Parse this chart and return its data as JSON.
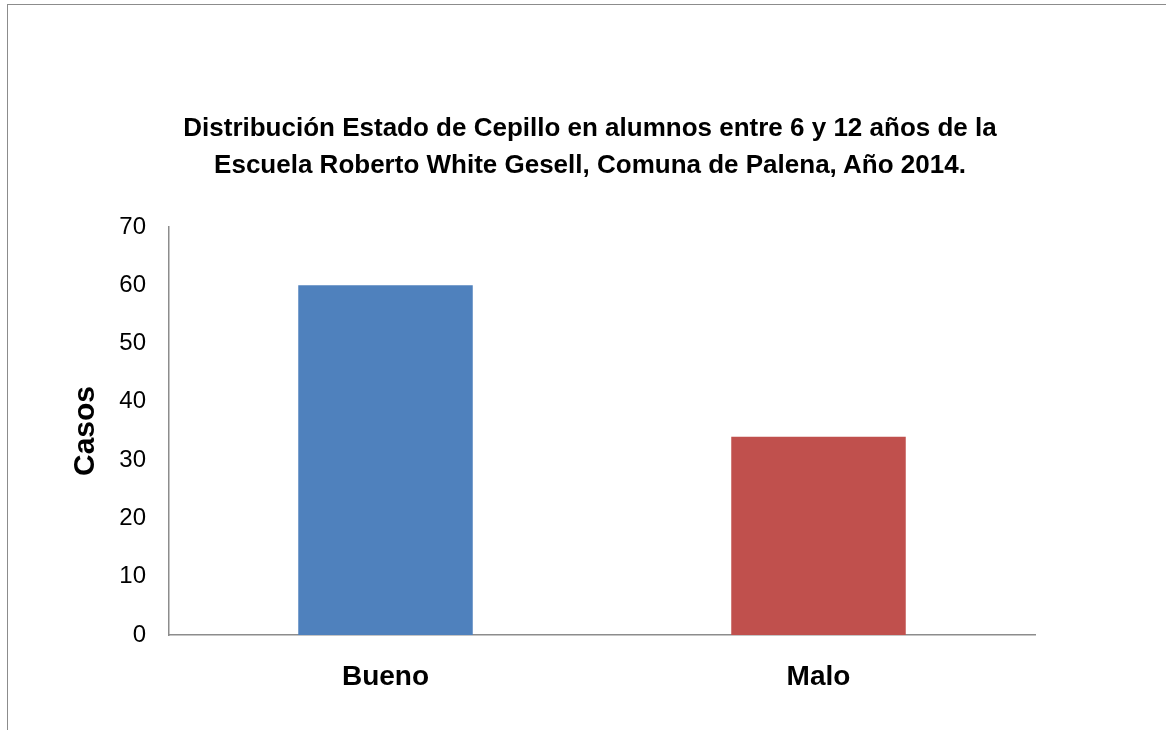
{
  "chart_data": {
    "type": "bar",
    "title": "Distribución Estado de Cepillo en alumnos entre 6 y 12 años de la\nEscuela Roberto White Gesell, Comuna de Palena, Año 2014.",
    "ylabel": "Casos",
    "categories": [
      "Bueno",
      "Malo"
    ],
    "values": [
      60,
      34
    ],
    "colors": [
      "#4f81bd",
      "#c0504d"
    ],
    "ylim": [
      0,
      70
    ],
    "yticks": [
      0,
      10,
      20,
      30,
      40,
      50,
      60,
      70
    ],
    "grid": false,
    "legend": false
  }
}
